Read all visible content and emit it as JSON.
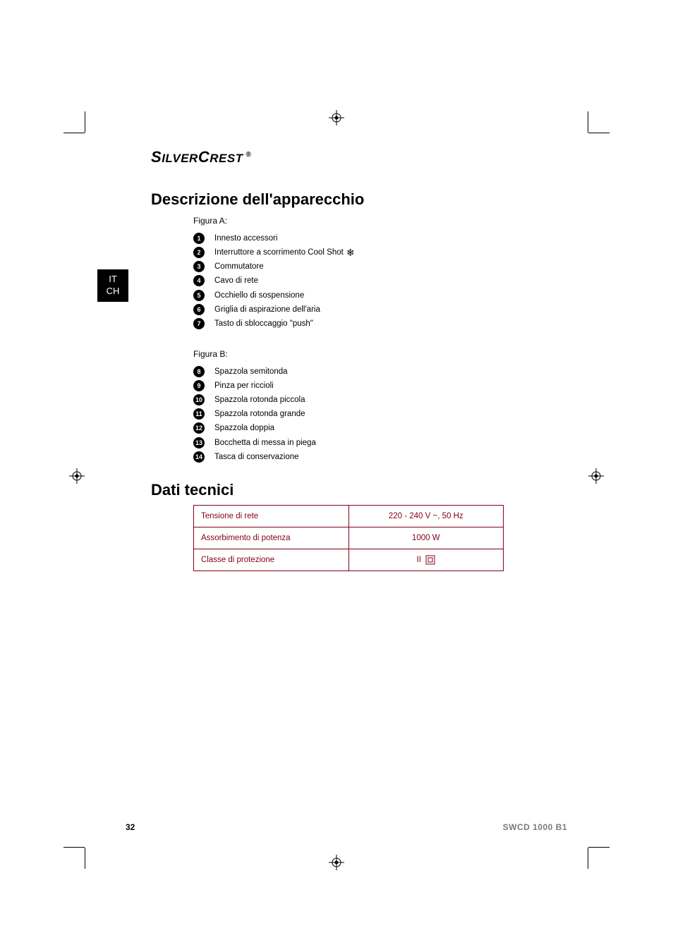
{
  "brand": {
    "part1": "Silver",
    "part2": "Crest",
    "reg": "®"
  },
  "lang_tab": {
    "line1": "IT",
    "line2": "CH"
  },
  "section1": {
    "title": "Descrizione dell'apparecchio",
    "figA_label": "Figura A:",
    "figA_items": [
      {
        "n": "1",
        "text": "Innesto accessori"
      },
      {
        "n": "2",
        "text": "Interruttore a scorrimento Cool Shot",
        "has_snowflake": true
      },
      {
        "n": "3",
        "text": "Commutatore"
      },
      {
        "n": "4",
        "text": "Cavo di rete"
      },
      {
        "n": "5",
        "text": "Occhiello di sospensione"
      },
      {
        "n": "6",
        "text": "Griglia di aspirazione dell'aria"
      },
      {
        "n": "7",
        "text": "Tasto di sbloccaggio \"push\""
      }
    ],
    "figB_label": "Figura B:",
    "figB_items": [
      {
        "n": "8",
        "text": "Spazzola semitonda"
      },
      {
        "n": "9",
        "text": "Pinza per riccioli"
      },
      {
        "n": "10",
        "text": "Spazzola rotonda piccola"
      },
      {
        "n": "11",
        "text": "Spazzola rotonda grande"
      },
      {
        "n": "12",
        "text": "Spazzola doppia"
      },
      {
        "n": "13",
        "text": "Bocchetta di messa in piega"
      },
      {
        "n": "14",
        "text": "Tasca di conservazione"
      }
    ]
  },
  "section2": {
    "title": "Dati tecnici",
    "rows": [
      {
        "label": "Tensione di rete",
        "value": "220 - 240 V ~, 50 Hz"
      },
      {
        "label": "Assorbimento di potenza",
        "value": "1000 W"
      },
      {
        "label": "Classe di protezione",
        "value": "II",
        "class2_symbol": true
      }
    ],
    "table_color": "#820018"
  },
  "footer": {
    "page": "32",
    "model": "SWCD 1000 B1"
  },
  "colors": {
    "text": "#000000",
    "table_border": "#820018",
    "model_gray": "#7a7a7a",
    "background": "#ffffff"
  }
}
